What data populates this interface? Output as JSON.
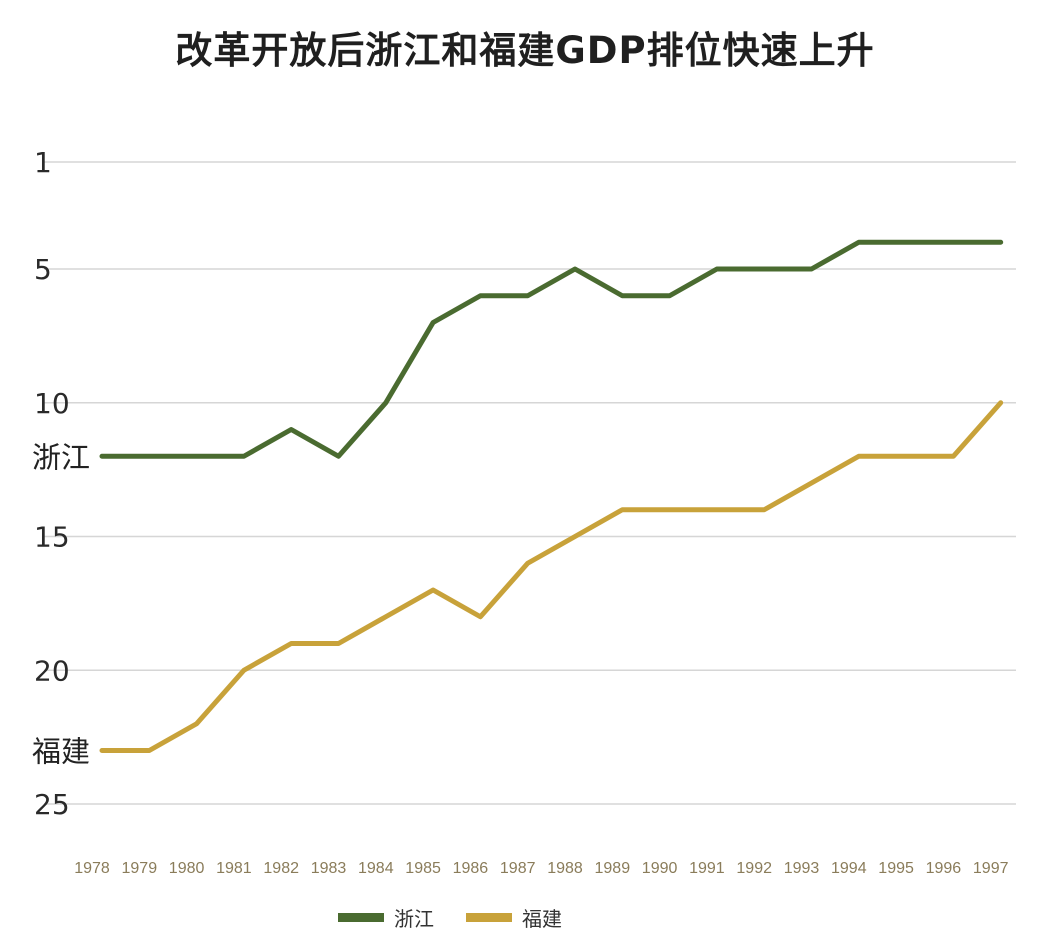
{
  "chart_data": {
    "type": "line",
    "title": "改革开放后浙江和福建GDP排位快速上升",
    "x": [
      "1978",
      "1979",
      "1980",
      "1981",
      "1982",
      "1983",
      "1984",
      "1985",
      "1986",
      "1987",
      "1988",
      "1989",
      "1990",
      "1991",
      "1992",
      "1993",
      "1994",
      "1995",
      "1996",
      "1997"
    ],
    "y_ticks": [
      "1",
      "5",
      "10",
      "15",
      "20",
      "25"
    ],
    "y_range": [
      1,
      25
    ],
    "y_inverted": true,
    "grid": true,
    "legend_position": "bottom-left",
    "series": [
      {
        "name": "浙江",
        "color": "#4a6b30",
        "values": [
          12,
          12,
          12,
          12,
          11,
          12,
          10,
          7,
          6,
          6,
          5,
          6,
          6,
          5,
          5,
          5,
          4,
          4,
          4,
          4
        ]
      },
      {
        "name": "福建",
        "color": "#c8a23a",
        "values": [
          23,
          23,
          22,
          20,
          19,
          19,
          18,
          17,
          18,
          16,
          15,
          14,
          14,
          14,
          14,
          13,
          12,
          12,
          12,
          10
        ]
      }
    ]
  }
}
